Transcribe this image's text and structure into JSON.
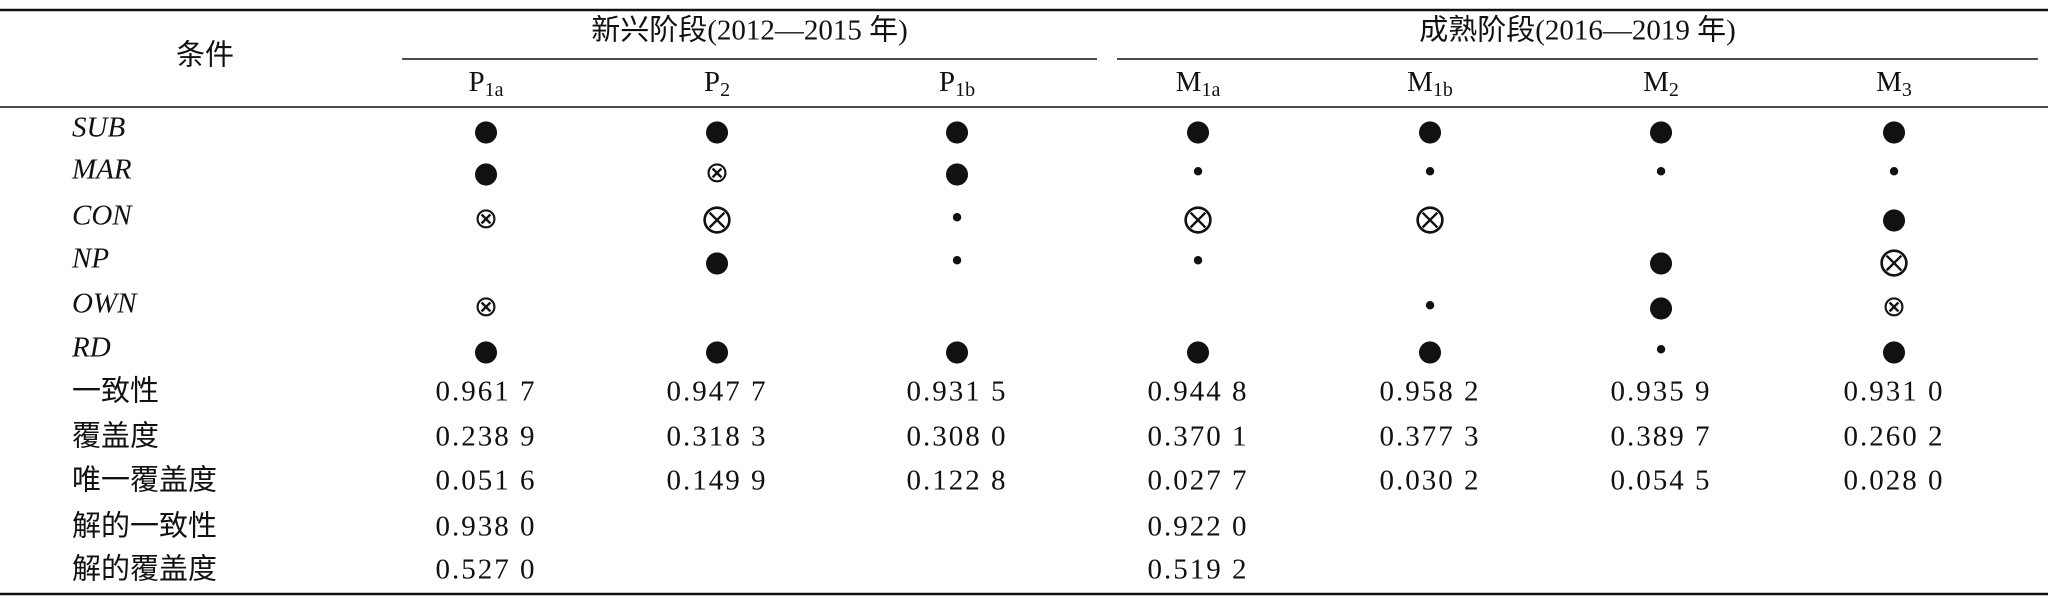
{
  "table": {
    "corner": "条件",
    "groups": [
      {
        "title": "新兴阶段(2012—2015 年)",
        "columns": [
          {
            "base": "P",
            "sub": "1a"
          },
          {
            "base": "P",
            "sub": "2"
          },
          {
            "base": "P",
            "sub": "1b"
          }
        ]
      },
      {
        "title": "成熟阶段(2016—2019 年)",
        "columns": [
          {
            "base": "M",
            "sub": "1a"
          },
          {
            "base": "M",
            "sub": "1b"
          },
          {
            "base": "M",
            "sub": "2"
          },
          {
            "base": "M",
            "sub": "3"
          }
        ]
      }
    ],
    "conditions": [
      {
        "label": "SUB",
        "cells": [
          "●",
          "●",
          "●",
          "●",
          "●",
          "●",
          "●"
        ]
      },
      {
        "label": "MAR",
        "cells": [
          "●",
          "⊗",
          "●",
          "•",
          "•",
          "•",
          "•"
        ]
      },
      {
        "label": "CON",
        "cells": [
          "⊗",
          "⨂",
          "•",
          "⨂",
          "⨂",
          null,
          "●"
        ]
      },
      {
        "label": "NP",
        "cells": [
          null,
          "●",
          "•",
          "•",
          null,
          "●",
          "⨂"
        ]
      },
      {
        "label": "OWN",
        "cells": [
          "⊗",
          null,
          null,
          null,
          "•",
          "●",
          "⊗"
        ]
      },
      {
        "label": "RD",
        "cells": [
          "●",
          "●",
          "●",
          "●",
          "●",
          "•",
          "●"
        ]
      }
    ],
    "metrics": [
      {
        "label": "一致性",
        "cells": [
          "0.961 7",
          "0.947 7",
          "0.931 5",
          "0.944 8",
          "0.958 2",
          "0.935 9",
          "0.931 0"
        ]
      },
      {
        "label": "覆盖度",
        "cells": [
          "0.238 9",
          "0.318 3",
          "0.308 0",
          "0.370 1",
          "0.377 3",
          "0.389 7",
          "0.260 2"
        ]
      },
      {
        "label": "唯一覆盖度",
        "cells": [
          "0.051 6",
          "0.149 9",
          "0.122 8",
          "0.027 7",
          "0.030 2",
          "0.054 5",
          "0.028 0"
        ]
      },
      {
        "label": "解的一致性",
        "cells": [
          "0.938 0",
          null,
          null,
          "0.922 0",
          null,
          null,
          null
        ]
      },
      {
        "label": "解的覆盖度",
        "cells": [
          "0.527 0",
          null,
          null,
          "0.519 2",
          null,
          null,
          null
        ]
      }
    ]
  }
}
